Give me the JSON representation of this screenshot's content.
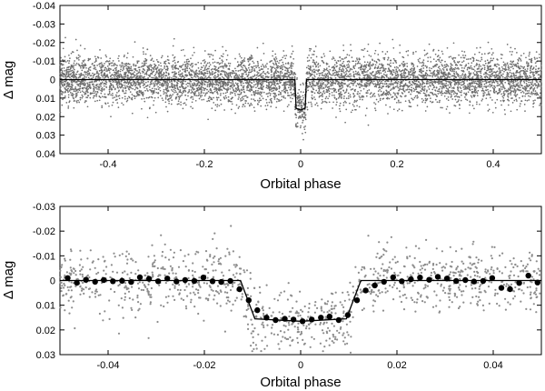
{
  "chart_data": [
    {
      "type": "scatter",
      "xlabel": "Orbital phase",
      "ylabel": "Δ mag",
      "xlim": [
        -0.5,
        0.5
      ],
      "ylim": [
        -0.04,
        0.04
      ],
      "y_inverted": true,
      "xticks": [
        -0.4,
        -0.2,
        0,
        0.2,
        0.4
      ],
      "xtick_labels": [
        "-0.4",
        "-0.2",
        "0",
        "0.2",
        "0.4"
      ],
      "yticks": [
        -0.04,
        -0.03,
        -0.02,
        -0.01,
        0,
        0.01,
        0.02,
        0.03,
        0.04
      ],
      "ytick_labels": [
        "-0.04",
        "-0.03",
        "-0.02",
        "-0.01",
        "0",
        "0.01",
        "0.02",
        "0.03",
        "0.04"
      ],
      "grid": false,
      "legend": "none",
      "point_color": "#6e6e6e",
      "model_color": "#000000",
      "series": [
        {
          "kind": "points",
          "description_scatter_rms": 0.0065,
          "x_range": [
            -0.5,
            0.5
          ],
          "count_approx": 6000
        },
        {
          "kind": "model_line",
          "x": [
            -0.5,
            -0.012,
            -0.0095,
            0.0,
            0.0095,
            0.012,
            0.5
          ],
          "y": [
            0,
            0,
            0.0155,
            0.0165,
            0.0155,
            0,
            0
          ]
        }
      ]
    },
    {
      "type": "scatter",
      "xlabel": "Orbital phase",
      "ylabel": "Δ mag",
      "xlim": [
        -0.05,
        0.05
      ],
      "ylim": [
        -0.03,
        0.03
      ],
      "y_inverted": true,
      "xticks": [
        -0.04,
        -0.02,
        0,
        0.02,
        0.04
      ],
      "xtick_labels": [
        "-0.04",
        "-0.02",
        "0",
        "0.02",
        "0.04"
      ],
      "yticks": [
        -0.03,
        -0.02,
        -0.01,
        0,
        0.01,
        0.02,
        0.03
      ],
      "ytick_labels": [
        "-0.03",
        "-0.02",
        "-0.01",
        "0",
        "0.01",
        "0.02",
        "0.03"
      ],
      "grid": false,
      "legend": "none",
      "point_color": "#8c8c8c",
      "binned_color": "#000000",
      "series": [
        {
          "kind": "points",
          "description_scatter_rms": 0.0065,
          "x_range": [
            -0.05,
            0.05
          ],
          "count_approx": 1200
        },
        {
          "kind": "binned",
          "x": [
            -0.0484,
            -0.0465,
            -0.0446,
            -0.0427,
            -0.0409,
            -0.039,
            -0.0371,
            -0.0352,
            -0.0334,
            -0.0315,
            -0.0296,
            -0.0277,
            -0.0258,
            -0.024,
            -0.0221,
            -0.0202,
            -0.0183,
            -0.0165,
            -0.0146,
            -0.0127,
            -0.0108,
            -0.009,
            -0.0071,
            -0.0052,
            -0.0033,
            -0.0015,
            0.0004,
            0.0023,
            0.0042,
            0.006,
            0.0079,
            0.0098,
            0.0117,
            0.0135,
            0.0154,
            0.0173,
            0.0192,
            0.021,
            0.0229,
            0.0248,
            0.0267,
            0.0285,
            0.0304,
            0.0323,
            0.0342,
            0.036,
            0.0379,
            0.0398,
            0.0417,
            0.0435,
            0.0454,
            0.0473,
            0.0492
          ],
          "y": [
            -0.001,
            0.0009,
            -0.0003,
            0.0005,
            -0.0002,
            0.0003,
            0.0001,
            0.0006,
            -0.0013,
            -0.0007,
            0.0003,
            -0.0008,
            0.0004,
            -0.0002,
            0.0002,
            -0.0012,
            0.0003,
            0.0006,
            0.0002,
            0.0035,
            0.008,
            0.012,
            0.015,
            0.016,
            0.0155,
            0.0158,
            0.0165,
            0.0158,
            0.015,
            0.0146,
            0.016,
            0.014,
            0.008,
            0.004,
            0.002,
            0.0005,
            -0.0013,
            0.0003,
            -0.0005,
            -0.0012,
            -0.0003,
            -0.0015,
            -0.0008,
            0.0002,
            -0.0002,
            0.0004,
            0.0002,
            -0.001,
            0.003,
            0.0035,
            0.001,
            -0.002,
            0.0008
          ]
        },
        {
          "kind": "model_line",
          "x": [
            -0.05,
            -0.0125,
            -0.0095,
            0.0,
            0.0095,
            0.0125,
            0.05
          ],
          "y": [
            0,
            0,
            0.0155,
            0.0165,
            0.0155,
            0,
            0
          ]
        }
      ]
    }
  ]
}
